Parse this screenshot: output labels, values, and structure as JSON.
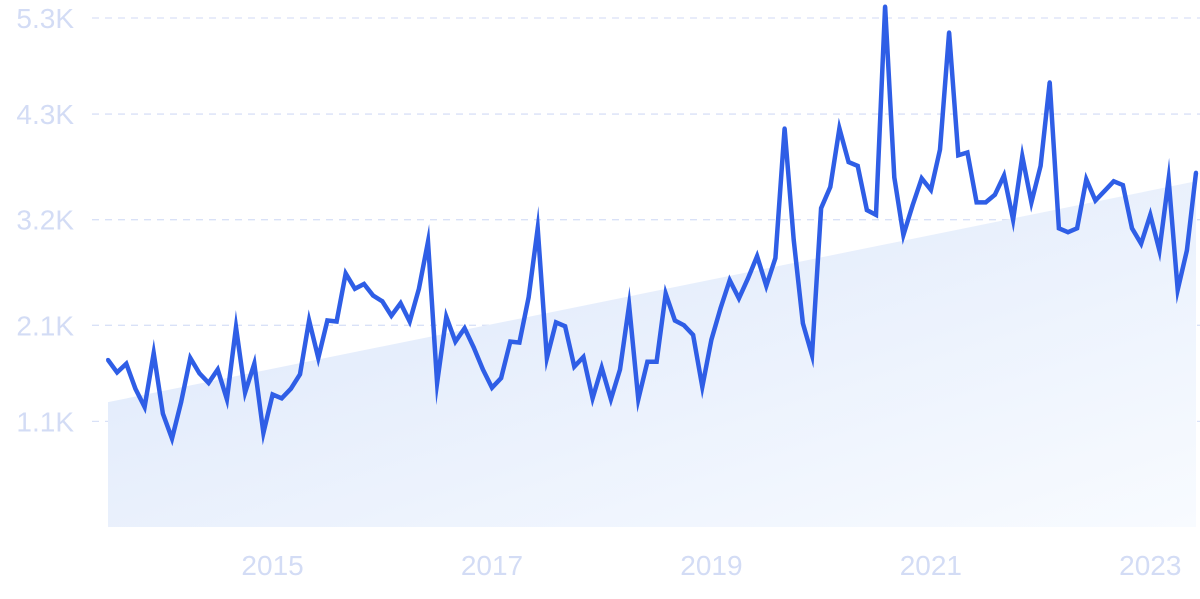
{
  "chart_data": {
    "type": "line",
    "title": "",
    "xlabel": "",
    "ylabel": "",
    "ylim": [
      0,
      5300
    ],
    "xlim": [
      "2014-01",
      "2023-12"
    ],
    "grid": true,
    "y_ticks": [
      1100,
      2100,
      3200,
      4300,
      5300
    ],
    "y_tick_labels": [
      "1.1K",
      "2.1K",
      "3.2K",
      "4.3K",
      "5.3K"
    ],
    "x_ticks": [
      "2015-07",
      "2017-07",
      "2019-07",
      "2021-07",
      "2023-07"
    ],
    "x_tick_labels": [
      "2015",
      "2017",
      "2019",
      "2021",
      "2023"
    ],
    "trend": {
      "start": [
        "2014-01",
        1300
      ],
      "end": [
        "2023-12",
        3600
      ]
    },
    "series": [
      {
        "x": [
          "2014-01",
          "2014-02",
          "2014-03",
          "2014-04",
          "2014-05",
          "2014-06",
          "2014-07",
          "2014-08",
          "2014-09",
          "2014-10",
          "2014-11",
          "2014-12",
          "2015-01",
          "2015-02",
          "2015-03",
          "2015-04",
          "2015-05",
          "2015-06",
          "2015-07",
          "2015-08",
          "2015-09",
          "2015-10",
          "2015-11",
          "2015-12",
          "2016-01",
          "2016-02",
          "2016-03",
          "2016-04",
          "2016-05",
          "2016-06",
          "2016-07",
          "2016-08",
          "2016-09",
          "2016-10",
          "2016-11",
          "2016-12",
          "2017-01",
          "2017-02",
          "2017-03",
          "2017-04",
          "2017-05",
          "2017-06",
          "2017-07",
          "2017-08",
          "2017-09",
          "2017-10",
          "2017-11",
          "2017-12",
          "2018-01",
          "2018-02",
          "2018-03",
          "2018-04",
          "2018-05",
          "2018-06",
          "2018-07",
          "2018-08",
          "2018-09",
          "2018-10",
          "2018-11",
          "2018-12",
          "2019-01",
          "2019-02",
          "2019-03",
          "2019-04",
          "2019-05",
          "2019-06",
          "2019-07",
          "2019-08",
          "2019-09",
          "2019-10",
          "2019-11",
          "2019-12",
          "2020-01",
          "2020-02",
          "2020-03",
          "2020-04",
          "2020-05",
          "2020-06",
          "2020-07",
          "2020-08",
          "2020-09",
          "2020-10",
          "2020-11",
          "2020-12",
          "2021-01",
          "2021-02",
          "2021-03",
          "2021-04",
          "2021-05",
          "2021-06",
          "2021-07",
          "2021-08",
          "2021-09",
          "2021-10",
          "2021-11",
          "2021-12",
          "2022-01",
          "2022-02",
          "2022-03",
          "2022-04",
          "2022-05",
          "2022-06",
          "2022-07",
          "2022-08",
          "2022-09",
          "2022-10",
          "2022-11",
          "2022-12",
          "2023-01",
          "2023-02",
          "2023-03",
          "2023-04",
          "2023-05",
          "2023-06",
          "2023-07",
          "2023-08",
          "2023-09",
          "2023-10",
          "2023-11",
          "2023-12"
        ],
        "values": [
          1740,
          1610,
          1700,
          1440,
          1250,
          1810,
          1180,
          920,
          1300,
          1760,
          1600,
          1500,
          1640,
          1330,
          2080,
          1400,
          1700,
          980,
          1380,
          1340,
          1440,
          1590,
          2150,
          1760,
          2150,
          2140,
          2640,
          2480,
          2530,
          2410,
          2350,
          2200,
          2330,
          2140,
          2480,
          2970,
          1500,
          2190,
          1930,
          2070,
          1870,
          1640,
          1450,
          1550,
          1930,
          1920,
          2390,
          3110,
          1760,
          2130,
          2090,
          1670,
          1770,
          1340,
          1660,
          1330,
          1640,
          2310,
          1330,
          1720,
          1720,
          2430,
          2150,
          2100,
          2000,
          1460,
          1950,
          2280,
          2570,
          2380,
          2590,
          2820,
          2510,
          2800,
          4150,
          2990,
          2120,
          1790,
          3320,
          3540,
          4150,
          3800,
          3760,
          3300,
          3250,
          5420,
          3640,
          3040,
          3350,
          3630,
          3510,
          3930,
          5150,
          3870,
          3900,
          3380,
          3380,
          3460,
          3660,
          3200,
          3860,
          3380,
          3760,
          4630,
          3110,
          3070,
          3110,
          3620,
          3400,
          3500,
          3600,
          3560,
          3110,
          2950,
          3250,
          2880,
          3620,
          2470,
          2880,
          3690
        ]
      }
    ]
  }
}
